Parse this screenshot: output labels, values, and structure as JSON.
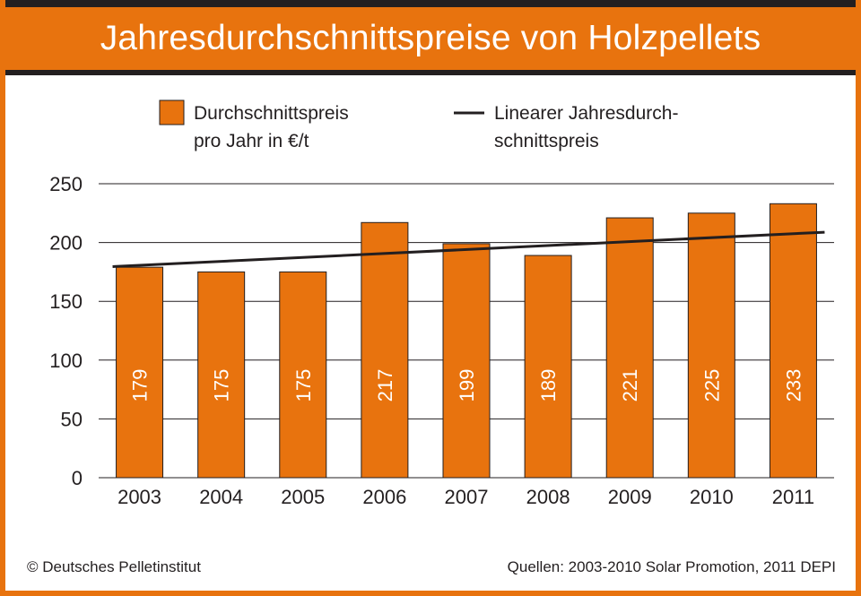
{
  "title": "Jahresdurchschnittspreise von Holzpellets",
  "legend": {
    "bar_line1": "Durchschnittspreis",
    "bar_line2": "pro Jahr in €/t",
    "line_line1": "Linearer Jahresdurch-",
    "line_line2": "schnittspreis"
  },
  "footer": {
    "left": "© Deutsches Pelletinstitut",
    "right": "Quellen: 2003-2010 Solar Promotion, 2011 DEPI"
  },
  "colors": {
    "accent": "#e8730e",
    "dark": "#231f20",
    "grid": "#231f20"
  },
  "chart_data": {
    "type": "bar",
    "title": "Jahresdurchschnittspreise von Holzpellets",
    "categories": [
      "2003",
      "2004",
      "2005",
      "2006",
      "2007",
      "2008",
      "2009",
      "2010",
      "2011"
    ],
    "series": [
      {
        "name": "Durchschnittspreis pro Jahr in €/t",
        "values": [
          179,
          175,
          175,
          217,
          199,
          189,
          221,
          225,
          233
        ]
      },
      {
        "name": "Linearer Jahresdurchschnittspreis",
        "type": "line",
        "values": [
          180.6,
          183.9,
          187.3,
          190.7,
          194.0,
          197.4,
          200.7,
          204.1,
          207.5
        ]
      }
    ],
    "yticks": [
      0,
      50,
      100,
      150,
      200,
      250
    ],
    "ylim": [
      0,
      250
    ],
    "grid": true,
    "legend_position": "top"
  }
}
